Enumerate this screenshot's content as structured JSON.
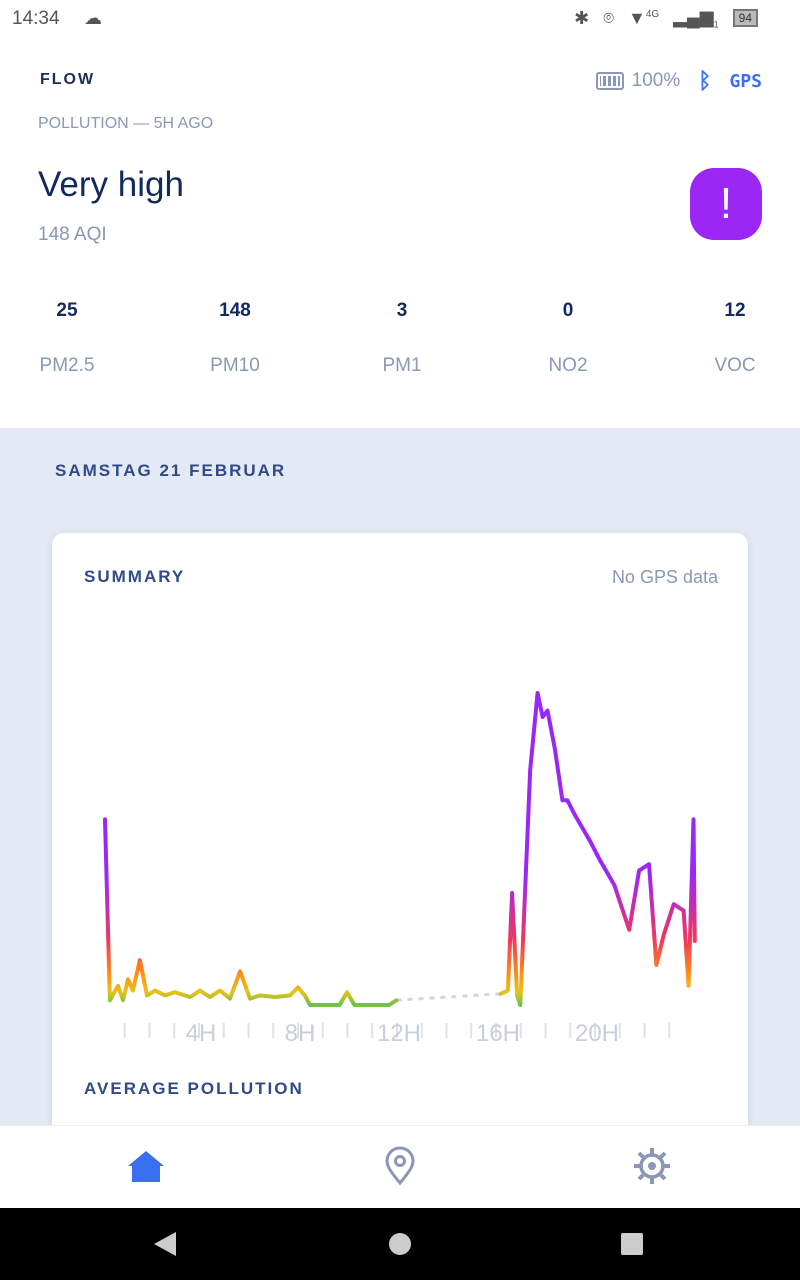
{
  "status_bar": {
    "time": "14:34",
    "battery": "94",
    "network": "4G",
    "sim": "1"
  },
  "header": {
    "brand": "FLOW",
    "device_battery": "100%",
    "gps_label": "GPS",
    "subtitle": "POLLUTION — 5H AGO",
    "level": "Very high",
    "aqi": "148 AQI",
    "alert_symbol": "!",
    "alert_color": "#9c27f5"
  },
  "metrics": [
    {
      "value": "25",
      "label": "PM2.5"
    },
    {
      "value": "148",
      "label": "PM10"
    },
    {
      "value": "3",
      "label": "PM1"
    },
    {
      "value": "0",
      "label": "NO2"
    },
    {
      "value": "12",
      "label": "VOC"
    }
  ],
  "feed": {
    "date": "SAMSTAG 21 FEBRUAR",
    "card": {
      "title": "SUMMARY",
      "gps_status": "No GPS data",
      "next_section": "AVERAGE POLLUTION"
    }
  },
  "chart_data": {
    "type": "line",
    "xlabel": "hour",
    "ylabel": "AQI",
    "xlim": [
      0,
      24
    ],
    "ylim": [
      0,
      200
    ],
    "tick_labels": [
      {
        "x": 4,
        "label": "4H"
      },
      {
        "x": 8,
        "label": "8H"
      },
      {
        "x": 12,
        "label": "12H"
      },
      {
        "x": 16,
        "label": "16H"
      },
      {
        "x": 20,
        "label": "20H"
      }
    ],
    "segments": [
      [
        [
          0.12,
          116
        ],
        [
          0.32,
          3
        ],
        [
          0.65,
          12
        ],
        [
          0.85,
          3
        ],
        [
          1.05,
          16
        ],
        [
          1.25,
          9
        ],
        [
          1.53,
          28
        ],
        [
          1.82,
          6
        ],
        [
          2.14,
          9
        ],
        [
          2.55,
          6
        ],
        [
          2.95,
          8
        ],
        [
          3.56,
          5
        ],
        [
          3.96,
          9
        ],
        [
          4.36,
          5
        ],
        [
          4.77,
          9
        ],
        [
          5.17,
          4
        ],
        [
          5.58,
          21
        ],
        [
          5.98,
          4
        ],
        [
          6.38,
          6
        ],
        [
          6.99,
          5
        ],
        [
          7.6,
          6
        ],
        [
          7.92,
          11
        ],
        [
          8.2,
          6
        ],
        [
          8.4,
          0
        ],
        [
          9.6,
          0
        ],
        [
          9.9,
          8
        ],
        [
          10.2,
          0
        ],
        [
          11.6,
          0
        ],
        [
          11.9,
          3
        ]
      ],
      [
        [
          16.1,
          7
        ],
        [
          16.4,
          9
        ],
        [
          16.57,
          70
        ],
        [
          16.77,
          6
        ],
        [
          16.9,
          0
        ],
        [
          17.3,
          147
        ],
        [
          17.6,
          195
        ],
        [
          17.8,
          180
        ],
        [
          18.0,
          184
        ],
        [
          18.3,
          160
        ],
        [
          18.6,
          128
        ],
        [
          18.8,
          128
        ],
        [
          19.1,
          119
        ],
        [
          19.7,
          103
        ],
        [
          20.1,
          91
        ],
        [
          20.7,
          75
        ],
        [
          21.3,
          47
        ],
        [
          21.7,
          84
        ],
        [
          22.1,
          88
        ],
        [
          22.4,
          25
        ],
        [
          22.7,
          44
        ],
        [
          23.1,
          63
        ],
        [
          23.5,
          59
        ],
        [
          23.7,
          12
        ],
        [
          23.9,
          116
        ],
        [
          23.95,
          40
        ]
      ]
    ],
    "gap": [
      [
        11.9,
        3
      ],
      [
        16.1,
        7
      ]
    ]
  },
  "bottom_nav": [
    {
      "icon": "home-icon",
      "active": true
    },
    {
      "icon": "map-pin-icon"
    },
    {
      "icon": "settings-icon"
    }
  ]
}
